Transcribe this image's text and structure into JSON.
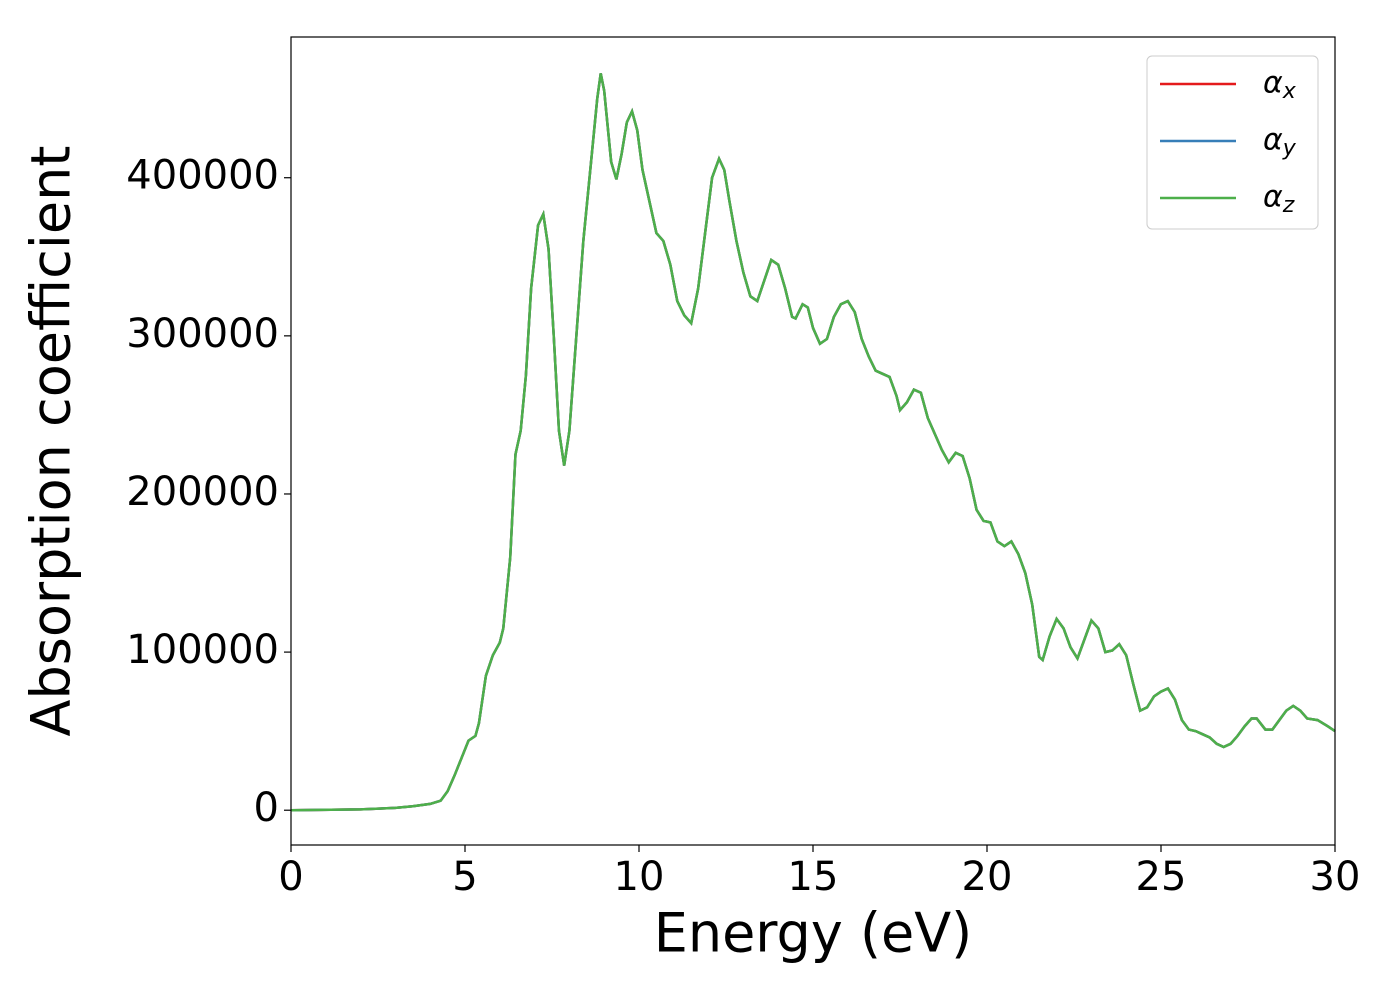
{
  "chart_data": {
    "type": "line",
    "xlabel": "Energy (eV)",
    "ylabel": "Absorption coefficient",
    "x": [
      0,
      2,
      3,
      3.5,
      4,
      4.3,
      4.5,
      4.7,
      4.9,
      5.1,
      5.3,
      5.4,
      5.6,
      5.8,
      6.0,
      6.1,
      6.3,
      6.45,
      6.6,
      6.75,
      6.9,
      7.1,
      7.25,
      7.4,
      7.55,
      7.7,
      7.85,
      8.0,
      8.2,
      8.4,
      8.6,
      8.8,
      8.9,
      9.0,
      9.2,
      9.35,
      9.5,
      9.65,
      9.8,
      9.95,
      10.1,
      10.3,
      10.5,
      10.7,
      10.9,
      11.1,
      11.3,
      11.5,
      11.7,
      11.9,
      12.1,
      12.3,
      12.45,
      12.6,
      12.8,
      13.0,
      13.2,
      13.4,
      13.6,
      13.8,
      14.0,
      14.2,
      14.4,
      14.5,
      14.7,
      14.85,
      15.0,
      15.2,
      15.4,
      15.6,
      15.8,
      16.0,
      16.2,
      16.4,
      16.6,
      16.8,
      17.0,
      17.2,
      17.4,
      17.5,
      17.7,
      17.9,
      18.1,
      18.3,
      18.5,
      18.7,
      18.9,
      19.1,
      19.3,
      19.5,
      19.7,
      19.9,
      20.1,
      20.3,
      20.5,
      20.7,
      20.9,
      21.1,
      21.3,
      21.5,
      21.6,
      21.8,
      22.0,
      22.2,
      22.4,
      22.6,
      22.8,
      23.0,
      23.2,
      23.4,
      23.6,
      23.8,
      24.0,
      24.2,
      24.4,
      24.6,
      24.8,
      25.0,
      25.2,
      25.4,
      25.6,
      25.8,
      26.0,
      26.2,
      26.4,
      26.6,
      26.8,
      27.0,
      27.2,
      27.4,
      27.6,
      27.75,
      28.0,
      28.2,
      28.4,
      28.6,
      28.8,
      29.0,
      29.2,
      29.5,
      29.8,
      30
    ],
    "series": [
      {
        "name": "αx",
        "color": "#e41a1c",
        "values": [
          0,
          500,
          1500,
          2500,
          4000,
          6000,
          12000,
          22000,
          33000,
          44000,
          47000,
          55000,
          85000,
          98000,
          106000,
          115000,
          160000,
          225000,
          240000,
          275000,
          330000,
          370000,
          377000,
          355000,
          300000,
          240000,
          218000,
          240000,
          300000,
          360000,
          405000,
          450000,
          466000,
          455000,
          410000,
          399000,
          415000,
          435000,
          442000,
          430000,
          405000,
          385000,
          365000,
          360000,
          345000,
          322000,
          313000,
          308000,
          330000,
          365000,
          400000,
          412000,
          405000,
          385000,
          360000,
          340000,
          325000,
          322000,
          335000,
          348000,
          345000,
          330000,
          312000,
          311000,
          320000,
          318000,
          305000,
          295000,
          298000,
          312000,
          320000,
          322000,
          315000,
          298000,
          287000,
          278000,
          276000,
          274000,
          262000,
          253000,
          258000,
          266000,
          264000,
          248000,
          238000,
          228000,
          220000,
          226000,
          224000,
          210000,
          190000,
          183000,
          182000,
          170000,
          167000,
          170000,
          162000,
          150000,
          130000,
          97000,
          95000,
          110000,
          121000,
          115000,
          103000,
          96000,
          108000,
          120000,
          115000,
          100000,
          101000,
          105000,
          98000,
          80000,
          63000,
          65000,
          72000,
          75000,
          77000,
          70000,
          57000,
          51000,
          50000,
          48000,
          46000,
          42000,
          40000,
          42000,
          47000,
          53000,
          58000,
          58000,
          51000,
          51000,
          57000,
          63000,
          66000,
          63000,
          58000,
          57000,
          53000,
          50000
        ]
      },
      {
        "name": "αy",
        "color": "#377eb8",
        "values": [
          0,
          500,
          1500,
          2500,
          4000,
          6000,
          12000,
          22000,
          33000,
          44000,
          47000,
          55000,
          85000,
          98000,
          106000,
          115000,
          160000,
          225000,
          240000,
          275000,
          330000,
          370000,
          377000,
          355000,
          300000,
          240000,
          218000,
          240000,
          300000,
          360000,
          405000,
          450000,
          466000,
          455000,
          410000,
          399000,
          415000,
          435000,
          442000,
          430000,
          405000,
          385000,
          365000,
          360000,
          345000,
          322000,
          313000,
          308000,
          330000,
          365000,
          400000,
          412000,
          405000,
          385000,
          360000,
          340000,
          325000,
          322000,
          335000,
          348000,
          345000,
          330000,
          312000,
          311000,
          320000,
          318000,
          305000,
          295000,
          298000,
          312000,
          320000,
          322000,
          315000,
          298000,
          287000,
          278000,
          276000,
          274000,
          262000,
          253000,
          258000,
          266000,
          264000,
          248000,
          238000,
          228000,
          220000,
          226000,
          224000,
          210000,
          190000,
          183000,
          182000,
          170000,
          167000,
          170000,
          162000,
          150000,
          130000,
          97000,
          95000,
          110000,
          121000,
          115000,
          103000,
          96000,
          108000,
          120000,
          115000,
          100000,
          101000,
          105000,
          98000,
          80000,
          63000,
          65000,
          72000,
          75000,
          77000,
          70000,
          57000,
          51000,
          50000,
          48000,
          46000,
          42000,
          40000,
          42000,
          47000,
          53000,
          58000,
          58000,
          51000,
          51000,
          57000,
          63000,
          66000,
          63000,
          58000,
          57000,
          53000,
          50000
        ]
      },
      {
        "name": "αz",
        "color": "#4daf4a",
        "values": [
          0,
          500,
          1500,
          2500,
          4000,
          6000,
          12000,
          22000,
          33000,
          44000,
          47000,
          55000,
          85000,
          98000,
          106000,
          115000,
          160000,
          225000,
          240000,
          275000,
          330000,
          370000,
          377000,
          355000,
          300000,
          240000,
          218000,
          240000,
          300000,
          360000,
          405000,
          450000,
          466000,
          455000,
          410000,
          399000,
          415000,
          435000,
          442000,
          430000,
          405000,
          385000,
          365000,
          360000,
          345000,
          322000,
          313000,
          308000,
          330000,
          365000,
          400000,
          412000,
          405000,
          385000,
          360000,
          340000,
          325000,
          322000,
          335000,
          348000,
          345000,
          330000,
          312000,
          311000,
          320000,
          318000,
          305000,
          295000,
          298000,
          312000,
          320000,
          322000,
          315000,
          298000,
          287000,
          278000,
          276000,
          274000,
          262000,
          253000,
          258000,
          266000,
          264000,
          248000,
          238000,
          228000,
          220000,
          226000,
          224000,
          210000,
          190000,
          183000,
          182000,
          170000,
          167000,
          170000,
          162000,
          150000,
          130000,
          97000,
          95000,
          110000,
          121000,
          115000,
          103000,
          96000,
          108000,
          120000,
          115000,
          100000,
          101000,
          105000,
          98000,
          80000,
          63000,
          65000,
          72000,
          75000,
          77000,
          70000,
          57000,
          51000,
          50000,
          48000,
          46000,
          42000,
          40000,
          42000,
          47000,
          53000,
          58000,
          58000,
          51000,
          51000,
          57000,
          63000,
          66000,
          63000,
          58000,
          57000,
          53000,
          50000
        ]
      }
    ],
    "xlim": [
      0,
      30
    ],
    "xticks": [
      0,
      5,
      10,
      15,
      20,
      25,
      30
    ],
    "ylim": [
      -22000,
      489000
    ],
    "yticks": [
      0,
      100000,
      200000,
      300000,
      400000
    ],
    "grid": false,
    "legend": "upper right"
  }
}
